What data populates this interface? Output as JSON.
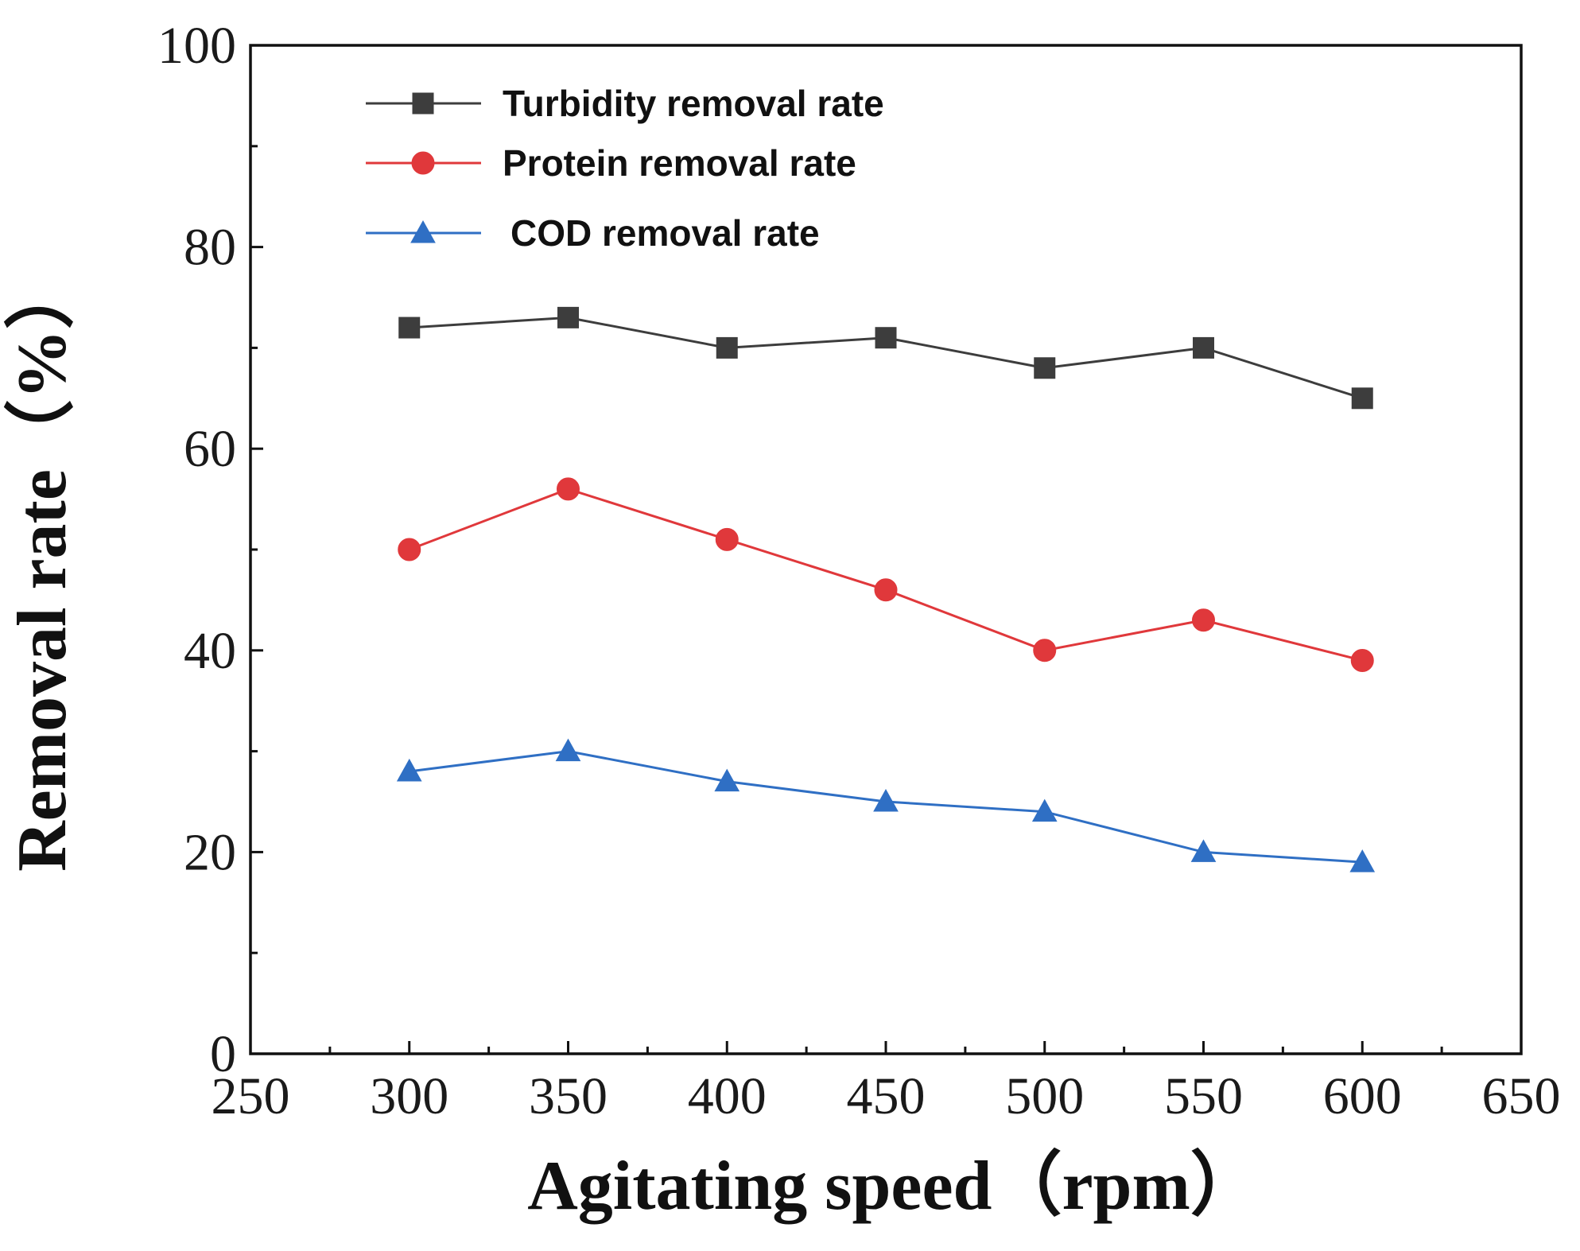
{
  "chart_data": {
    "type": "line",
    "title": "",
    "xlabel": "Agitating speed（rpm）",
    "ylabel": "Removal rate（%）",
    "xlim": [
      250,
      650
    ],
    "ylim": [
      0,
      100
    ],
    "x_ticks": [
      250,
      300,
      350,
      400,
      450,
      500,
      550,
      600,
      650
    ],
    "y_ticks": [
      0,
      20,
      40,
      60,
      80,
      100
    ],
    "grid": false,
    "legend_position": "top-left",
    "x": [
      300,
      350,
      400,
      450,
      500,
      550,
      600
    ],
    "series": [
      {
        "name": "Turbidity removal rate",
        "color": "#3d3d3d",
        "marker": "square",
        "values": [
          72,
          73,
          70,
          71,
          68,
          70,
          65
        ]
      },
      {
        "name": "Protein removal rate",
        "color": "#e0383b",
        "marker": "circle",
        "values": [
          50,
          56,
          51,
          46,
          40,
          43,
          39
        ]
      },
      {
        "name": "COD removal rate",
        "color": "#2f6fc4",
        "marker": "triangle",
        "values": [
          28,
          30,
          27,
          25,
          24,
          20,
          19
        ]
      }
    ]
  }
}
